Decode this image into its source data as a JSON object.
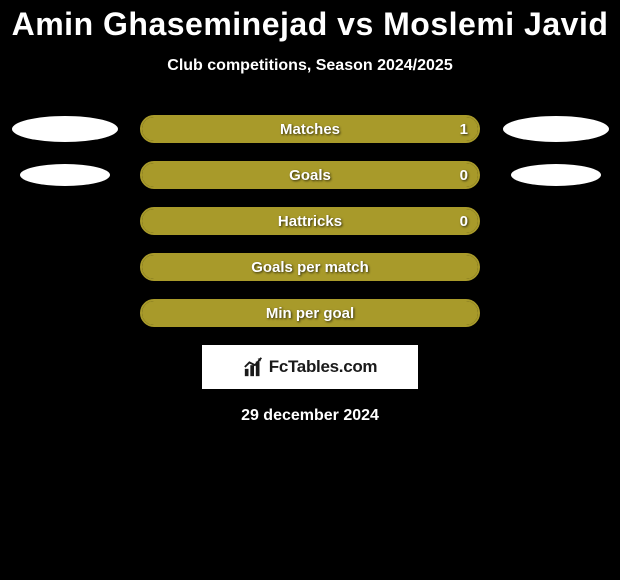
{
  "title": "Amin Ghaseminejad vs Moslemi Javid",
  "subtitle": "Club competitions, Season 2024/2025",
  "date": "29 december 2024",
  "logo_text": "FcTables.com",
  "colors": {
    "background": "#000000",
    "bar_fill": "#a89a2a",
    "bar_border": "#a89a2a",
    "ellipse": "#ffffff",
    "text": "#ffffff"
  },
  "ellipse_styles": {
    "large": {
      "width": 106,
      "height": 26
    },
    "small": {
      "width": 90,
      "height": 22
    }
  },
  "rows": [
    {
      "label": "Matches",
      "value": "1",
      "fill_pct": 100,
      "left_ellipse": "large",
      "right_ellipse": "large"
    },
    {
      "label": "Goals",
      "value": "0",
      "fill_pct": 100,
      "left_ellipse": "small",
      "right_ellipse": "small"
    },
    {
      "label": "Hattricks",
      "value": "0",
      "fill_pct": 100,
      "left_ellipse": null,
      "right_ellipse": null
    },
    {
      "label": "Goals per match",
      "value": "",
      "fill_pct": 100,
      "left_ellipse": null,
      "right_ellipse": null
    },
    {
      "label": "Min per goal",
      "value": "",
      "fill_pct": 100,
      "left_ellipse": null,
      "right_ellipse": null
    }
  ]
}
